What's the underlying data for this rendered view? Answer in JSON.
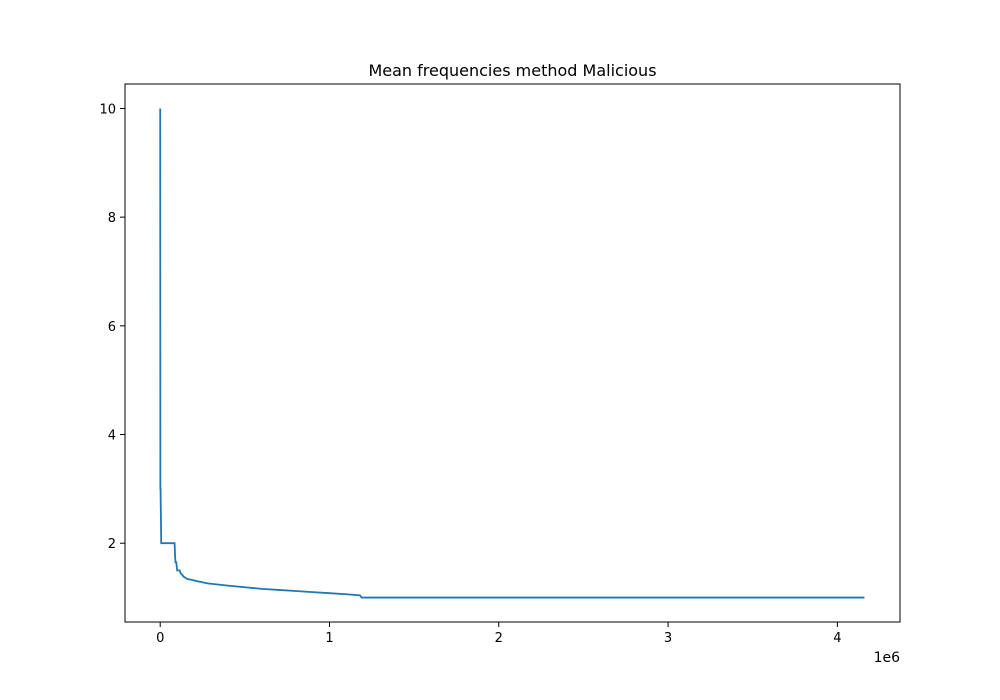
{
  "chart_data": {
    "type": "line",
    "title": "Mean frequencies method Malicious",
    "xlabel": "",
    "ylabel": "",
    "x_offset_label": "1e6",
    "xlim": [
      -0.208,
      4.37
    ],
    "ylim": [
      0.55,
      10.45
    ],
    "x_ticks": [
      0,
      1,
      2,
      3,
      4
    ],
    "x_tick_labels": [
      "0",
      "1",
      "2",
      "3",
      "4"
    ],
    "y_ticks": [
      2,
      4,
      6,
      8,
      10
    ],
    "y_tick_labels": [
      "2",
      "4",
      "6",
      "8",
      "10"
    ],
    "grid": false,
    "legend": "none",
    "line_color": "#1f77b4",
    "series": [
      {
        "name": "Malicious",
        "x": [
          0,
          0.001,
          0.002,
          0.006,
          0.008,
          0.085,
          0.088,
          0.09,
          0.095,
          0.1,
          0.115,
          0.12,
          0.14,
          0.16,
          0.18,
          0.22,
          0.28,
          0.34,
          0.4,
          0.5,
          0.6,
          0.7,
          0.8,
          0.9,
          1.0,
          1.1,
          1.18,
          1.19,
          1.5,
          2.0,
          2.5,
          3.0,
          3.5,
          4.0,
          4.16
        ],
        "y": [
          10.0,
          3.0,
          3.0,
          2.0,
          2.0,
          2.0,
          1.75,
          1.65,
          1.65,
          1.5,
          1.5,
          1.45,
          1.38,
          1.34,
          1.33,
          1.3,
          1.26,
          1.24,
          1.22,
          1.19,
          1.16,
          1.14,
          1.12,
          1.1,
          1.08,
          1.06,
          1.04,
          1.0,
          1.0,
          1.0,
          1.0,
          1.0,
          1.0,
          1.0,
          1.0
        ]
      }
    ]
  }
}
